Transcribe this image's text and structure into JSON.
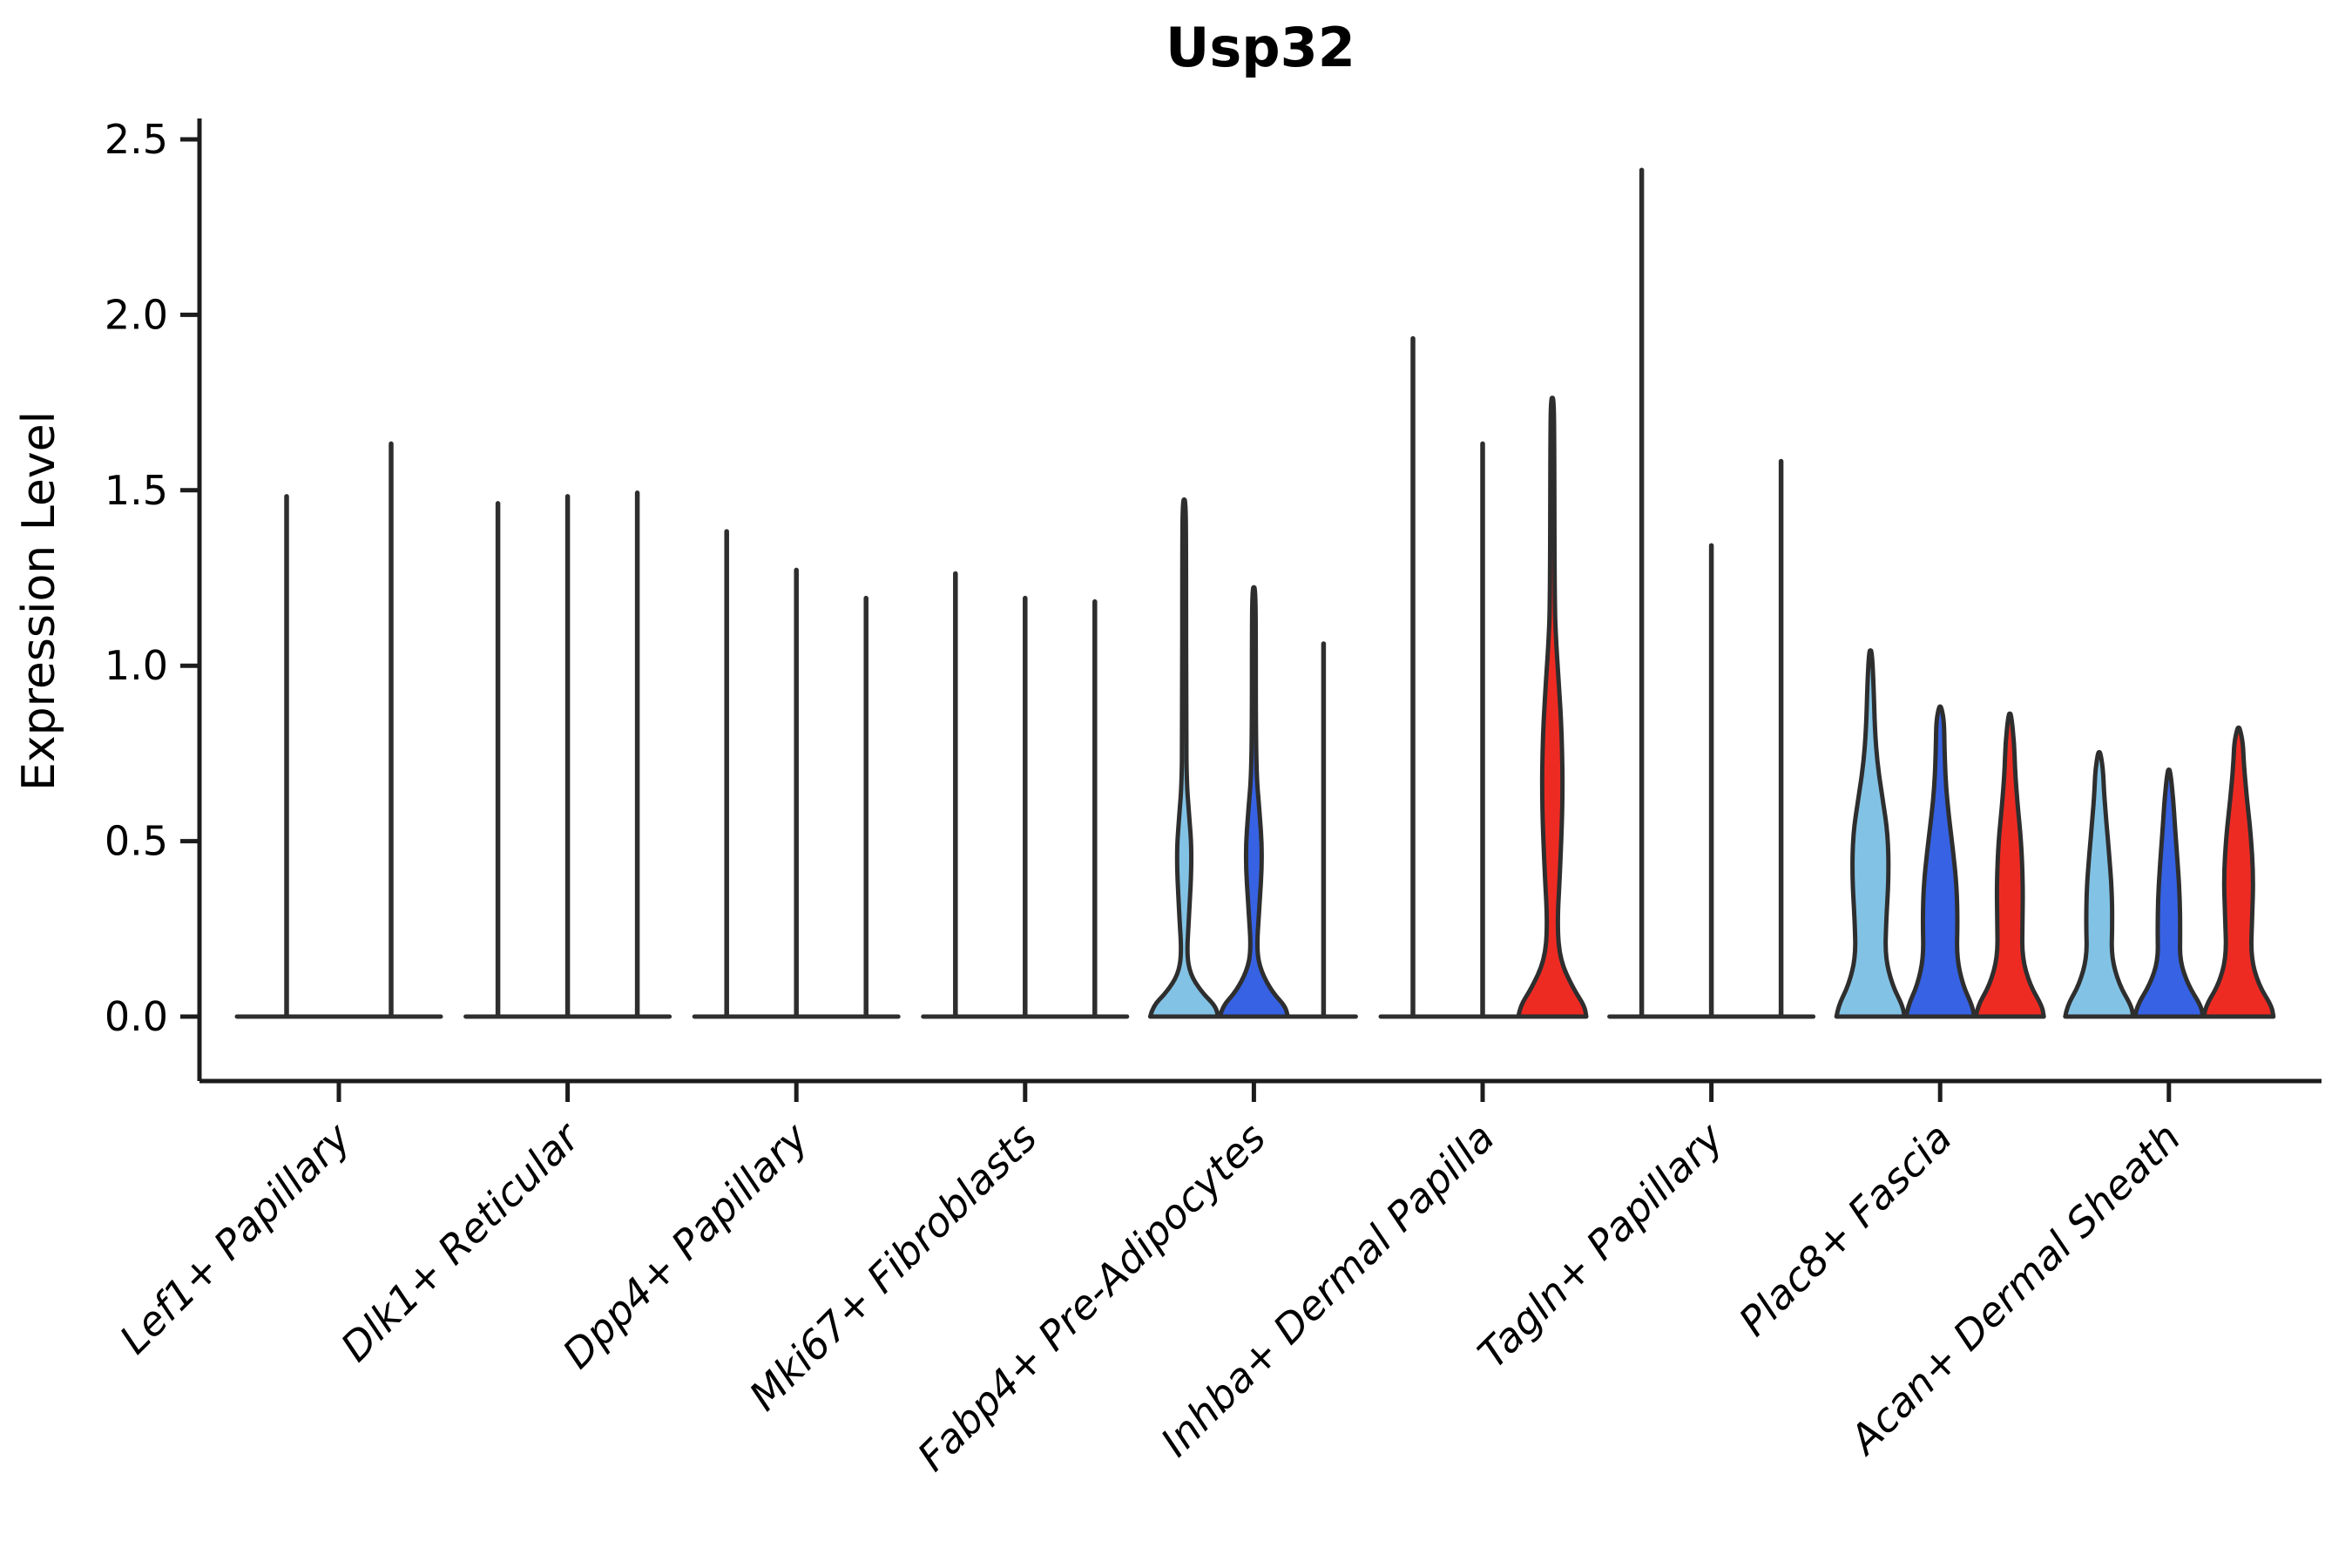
{
  "figure": {
    "title": "Usp32",
    "background_color": "#ffffff"
  },
  "palette": {
    "sample_lightblue": "#82C3E5",
    "sample_blue": "#3662E3",
    "sample_red": "#EE2B23",
    "violin_stroke": "#2E2E2E",
    "axis_color": "#1C1C1C",
    "text_color": "#000000"
  },
  "chart_data": {
    "type": "violin",
    "title": "Usp32",
    "xlabel": "",
    "ylabel": "Expression Level",
    "ylim": [
      0,
      2.5
    ],
    "yticks": [
      0.0,
      0.5,
      1.0,
      1.5,
      2.0,
      2.5
    ],
    "ytick_labels": [
      "0.0",
      "0.5",
      "1.0",
      "1.5",
      "2.0",
      "2.5"
    ],
    "grid": false,
    "legend": "none",
    "categories": [
      "Lef1+ Papillary",
      "Dlk1+ Reticular",
      "Dpp4+ Papillary",
      "Mki67+ Fibroblasts",
      "Fabp4+ Pre-Adipocytes",
      "Inhba+ Dermal Papilla",
      "Tagln+ Papillary",
      "Plac8+ Fascia",
      "Acan+ Dermal Sheath"
    ],
    "groups": [
      {
        "category": "Lef1+ Papillary",
        "violins": [
          {
            "style": "line",
            "color": null,
            "max": 1.49
          },
          {
            "style": "line",
            "color": null,
            "max": 1.64
          }
        ]
      },
      {
        "category": "Dlk1+ Reticular",
        "violins": [
          {
            "style": "line",
            "color": null,
            "max": 1.47
          },
          {
            "style": "line",
            "color": null,
            "max": 1.49
          },
          {
            "style": "line",
            "color": null,
            "max": 1.5
          }
        ]
      },
      {
        "category": "Dpp4+ Papillary",
        "violins": [
          {
            "style": "line",
            "color": null,
            "max": 1.39
          },
          {
            "style": "line",
            "color": null,
            "max": 1.28
          },
          {
            "style": "line",
            "color": null,
            "max": 1.2
          }
        ]
      },
      {
        "category": "Mki67+ Fibroblasts",
        "violins": [
          {
            "style": "line",
            "color": null,
            "max": 1.27
          },
          {
            "style": "line",
            "color": null,
            "max": 1.2
          },
          {
            "style": "line",
            "color": null,
            "max": 1.19
          }
        ]
      },
      {
        "category": "Fabp4+ Pre-Adipocytes",
        "violins": [
          {
            "style": "violin",
            "color": "#82C3E5",
            "max": 1.47,
            "profile": [
              [
                0,
                39
              ],
              [
                0.03,
                36
              ],
              [
                0.07,
                20
              ],
              [
                0.12,
                7
              ],
              [
                0.18,
                3
              ],
              [
                0.28,
                5.5
              ],
              [
                0.46,
                9
              ],
              [
                0.58,
                5.5
              ],
              [
                0.66,
                3
              ],
              [
                0.8,
                2.2
              ],
              [
                1.38,
                2.2
              ],
              [
                1.47,
                1.4
              ]
            ]
          },
          {
            "style": "violin",
            "color": "#3662E3",
            "max": 1.22,
            "profile": [
              [
                0,
                39
              ],
              [
                0.03,
                36
              ],
              [
                0.07,
                21
              ],
              [
                0.13,
                8
              ],
              [
                0.19,
                3.2
              ],
              [
                0.3,
                6
              ],
              [
                0.46,
                10
              ],
              [
                0.6,
                6
              ],
              [
                0.68,
                3.2
              ],
              [
                0.84,
                2.2
              ],
              [
                1.14,
                2.2
              ],
              [
                1.22,
                1.4
              ]
            ]
          },
          {
            "style": "line",
            "color": null,
            "max": 1.07
          }
        ]
      },
      {
        "category": "Inhba+ Dermal Papilla",
        "violins": [
          {
            "style": "line",
            "color": null,
            "max": 1.94
          },
          {
            "style": "line",
            "color": null,
            "max": 1.64
          },
          {
            "style": "violin",
            "color": "#EE2B23",
            "max": 1.76,
            "profile": [
              [
                0,
                39
              ],
              [
                0.03,
                37
              ],
              [
                0.08,
                24
              ],
              [
                0.16,
                9
              ],
              [
                0.26,
                5.5
              ],
              [
                0.42,
                9
              ],
              [
                0.62,
                12
              ],
              [
                0.8,
                11
              ],
              [
                0.95,
                7.5
              ],
              [
                1.06,
                4.5
              ],
              [
                1.18,
                2.6
              ],
              [
                1.68,
                2.2
              ],
              [
                1.76,
                1.4
              ]
            ]
          }
        ]
      },
      {
        "category": "Tagln+ Papillary",
        "violins": [
          {
            "style": "line",
            "color": null,
            "max": 2.42
          },
          {
            "style": "line",
            "color": null,
            "max": 1.35
          },
          {
            "style": "line",
            "color": null,
            "max": 1.59
          }
        ]
      },
      {
        "category": "Plac8+ Fascia",
        "violins": [
          {
            "style": "violin",
            "color": "#82C3E5",
            "max": 1.04,
            "profile": [
              [
                0,
                39
              ],
              [
                0.03,
                37
              ],
              [
                0.09,
                25
              ],
              [
                0.17,
                17
              ],
              [
                0.27,
                18
              ],
              [
                0.4,
                21
              ],
              [
                0.52,
                20
              ],
              [
                0.62,
                14
              ],
              [
                0.72,
                8
              ],
              [
                0.82,
                5
              ],
              [
                0.95,
                3.5
              ],
              [
                1.04,
                1.6
              ]
            ]
          },
          {
            "style": "violin",
            "color": "#3662E3",
            "max": 0.88,
            "profile": [
              [
                0,
                39
              ],
              [
                0.03,
                37
              ],
              [
                0.09,
                26
              ],
              [
                0.17,
                19
              ],
              [
                0.27,
                20
              ],
              [
                0.37,
                19
              ],
              [
                0.47,
                15
              ],
              [
                0.57,
                10
              ],
              [
                0.66,
                6.5
              ],
              [
                0.76,
                5
              ],
              [
                0.84,
                4.5
              ],
              [
                0.88,
                1.6
              ]
            ]
          },
          {
            "style": "violin",
            "color": "#EE2B23",
            "max": 0.86,
            "profile": [
              [
                0,
                39
              ],
              [
                0.03,
                37
              ],
              [
                0.09,
                23
              ],
              [
                0.17,
                14
              ],
              [
                0.27,
                14.5
              ],
              [
                0.38,
                15
              ],
              [
                0.5,
                13
              ],
              [
                0.6,
                9
              ],
              [
                0.7,
                6
              ],
              [
                0.78,
                5
              ],
              [
                0.86,
                1.6
              ]
            ]
          }
        ]
      },
      {
        "category": "Acan+ Dermal Sheath",
        "violins": [
          {
            "style": "violin",
            "color": "#82C3E5",
            "max": 0.75,
            "profile": [
              [
                0,
                39
              ],
              [
                0.03,
                37
              ],
              [
                0.09,
                23
              ],
              [
                0.17,
                14
              ],
              [
                0.26,
                15
              ],
              [
                0.36,
                14.5
              ],
              [
                0.46,
                11.5
              ],
              [
                0.56,
                8
              ],
              [
                0.64,
                5.5
              ],
              [
                0.7,
                4.5
              ],
              [
                0.75,
                1.6
              ]
            ]
          },
          {
            "style": "violin",
            "color": "#3662E3",
            "max": 0.7,
            "profile": [
              [
                0,
                39
              ],
              [
                0.03,
                37
              ],
              [
                0.09,
                22
              ],
              [
                0.16,
                12.5
              ],
              [
                0.24,
                13
              ],
              [
                0.34,
                12.5
              ],
              [
                0.44,
                10
              ],
              [
                0.54,
                7
              ],
              [
                0.62,
                5
              ],
              [
                0.7,
                1.6
              ]
            ]
          },
          {
            "style": "violin",
            "color": "#EE2B23",
            "max": 0.82,
            "profile": [
              [
                0,
                40
              ],
              [
                0.03,
                38
              ],
              [
                0.09,
                23
              ],
              [
                0.17,
                14
              ],
              [
                0.28,
                15.5
              ],
              [
                0.4,
                17
              ],
              [
                0.52,
                14
              ],
              [
                0.62,
                9.5
              ],
              [
                0.72,
                6
              ],
              [
                0.78,
                5
              ],
              [
                0.82,
                1.6
              ]
            ]
          }
        ]
      }
    ]
  }
}
